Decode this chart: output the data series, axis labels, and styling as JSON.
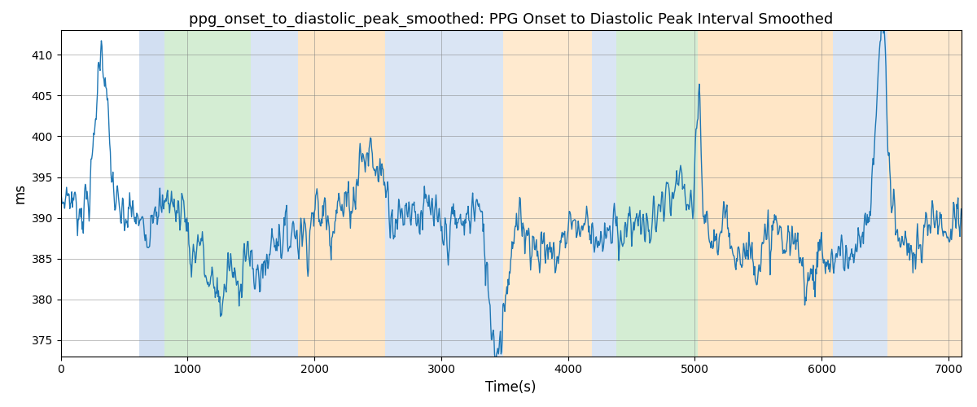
{
  "title": "ppg_onset_to_diastolic_peak_smoothed: PPG Onset to Diastolic Peak Interval Smoothed",
  "xlabel": "Time(s)",
  "ylabel": "ms",
  "xlim": [
    0,
    7100
  ],
  "ylim": [
    373,
    413
  ],
  "yticks": [
    375,
    380,
    385,
    390,
    395,
    400,
    405,
    410
  ],
  "xticks": [
    0,
    1000,
    2000,
    3000,
    4000,
    5000,
    6000,
    7000
  ],
  "line_color": "#1f77b4",
  "background_color": "#ffffff",
  "bands": [
    {
      "xmin": 620,
      "xmax": 820,
      "color": "#aec6e8",
      "alpha": 0.55
    },
    {
      "xmin": 820,
      "xmax": 1500,
      "color": "#b2dfb0",
      "alpha": 0.55
    },
    {
      "xmin": 1500,
      "xmax": 1870,
      "color": "#aec6e8",
      "alpha": 0.45
    },
    {
      "xmin": 1870,
      "xmax": 2560,
      "color": "#ffd9a8",
      "alpha": 0.65
    },
    {
      "xmin": 2560,
      "xmax": 3490,
      "color": "#aec6e8",
      "alpha": 0.45
    },
    {
      "xmin": 3490,
      "xmax": 4190,
      "color": "#ffd9a8",
      "alpha": 0.55
    },
    {
      "xmin": 4190,
      "xmax": 4380,
      "color": "#aec6e8",
      "alpha": 0.45
    },
    {
      "xmin": 4380,
      "xmax": 5020,
      "color": "#b2dfb0",
      "alpha": 0.55
    },
    {
      "xmin": 5020,
      "xmax": 6090,
      "color": "#ffd9a8",
      "alpha": 0.65
    },
    {
      "xmin": 6090,
      "xmax": 6520,
      "color": "#aec6e8",
      "alpha": 0.45
    },
    {
      "xmin": 6520,
      "xmax": 7100,
      "color": "#ffd9a8",
      "alpha": 0.55
    }
  ],
  "line_width": 1.0
}
